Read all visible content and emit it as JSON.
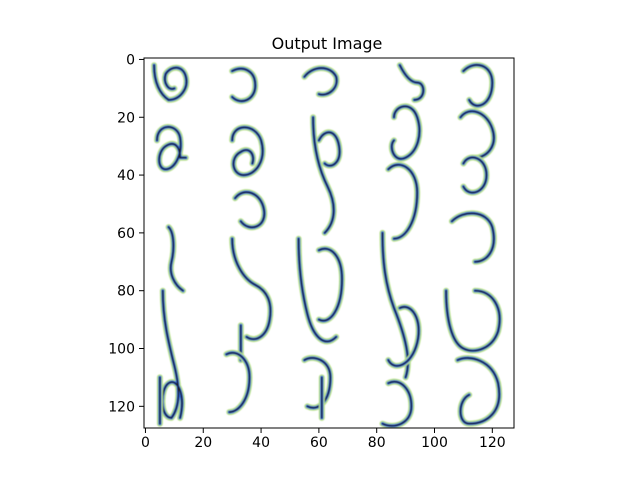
{
  "chart_data": {
    "type": "heatmap",
    "title": "Output Image",
    "xlabel": "",
    "ylabel": "",
    "image_size": [
      128,
      128
    ],
    "xlim": [
      -0.5,
      127.5
    ],
    "ylim": [
      127.5,
      -0.5
    ],
    "x_ticks": [
      0,
      20,
      40,
      60,
      80,
      100,
      120
    ],
    "y_ticks": [
      0,
      20,
      40,
      60,
      80,
      100,
      120
    ],
    "grid": false,
    "legend": "none",
    "content": "rendered sketch image"
  },
  "colors": {
    "background": "#ffffff",
    "ink_dark": "#1b1f24",
    "ink_blue": "#2a67e6",
    "ink_green": "#b7e08a"
  }
}
